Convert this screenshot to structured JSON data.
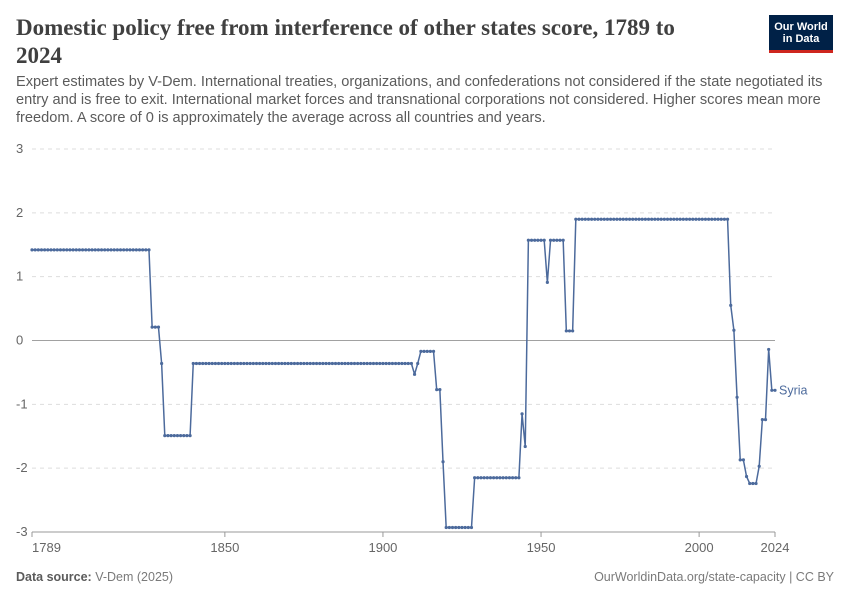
{
  "header": {
    "title": "Domestic policy free from interference of other states score, 1789 to 2024",
    "subtitle": "Expert estimates by V-Dem. International treaties, organizations, and confederations not considered if the state negotiated its entry and is free to exit. International market forces and transnational corporations not considered. Higher scores mean more freedom. A score of 0 is approximately the average across all countries and years.",
    "logo_line1": "Our World",
    "logo_line2": "in Data"
  },
  "footer": {
    "source_label": "Data source:",
    "source_value": "V-Dem (2025)",
    "link": "OurWorldinData.org/state-capacity",
    "license": "| CC BY"
  },
  "colors": {
    "series": "#4c6a9c",
    "grid": "#dddddd",
    "zero_line": "#a1a1a1",
    "text": "#5b5b5b"
  },
  "chart_data": {
    "type": "line",
    "title": "Domestic policy free from interference of other states score, 1789 to 2024",
    "xlabel": "",
    "ylabel": "",
    "xlim": [
      1789,
      2024
    ],
    "ylim": [
      -3,
      3
    ],
    "x_ticks": [
      "1789",
      "1850",
      "1900",
      "1950",
      "2000",
      "2024"
    ],
    "y_ticks": [
      "3",
      "2",
      "1",
      "0",
      "-1",
      "-2",
      "-3"
    ],
    "grid": true,
    "legend": "end-of-line label",
    "series": [
      {
        "name": "Syria",
        "segments": [
          {
            "from": 1789,
            "to": 1826,
            "value": 1.42
          },
          {
            "from": 1827,
            "to": 1829,
            "value": 0.21
          },
          {
            "from": 1830,
            "to": 1830,
            "value": -0.36
          },
          {
            "from": 1831,
            "to": 1839,
            "value": -1.49
          },
          {
            "from": 1840,
            "to": 1909,
            "value": -0.36
          },
          {
            "from": 1910,
            "to": 1910,
            "value": -0.53
          },
          {
            "from": 1911,
            "to": 1911,
            "value": -0.36
          },
          {
            "from": 1912,
            "to": 1916,
            "value": -0.17
          },
          {
            "from": 1917,
            "to": 1918,
            "value": -0.77
          },
          {
            "from": 1919,
            "to": 1919,
            "value": -1.9
          },
          {
            "from": 1920,
            "to": 1928,
            "value": -2.93
          },
          {
            "from": 1929,
            "to": 1943,
            "value": -2.15
          },
          {
            "from": 1944,
            "to": 1944,
            "value": -1.15
          },
          {
            "from": 1945,
            "to": 1945,
            "value": -1.66
          },
          {
            "from": 1946,
            "to": 1951,
            "value": 1.57
          },
          {
            "from": 1952,
            "to": 1952,
            "value": 0.91
          },
          {
            "from": 1953,
            "to": 1957,
            "value": 1.57
          },
          {
            "from": 1958,
            "to": 1960,
            "value": 0.15
          },
          {
            "from": 1961,
            "to": 2009,
            "value": 1.9
          },
          {
            "from": 2010,
            "to": 2010,
            "value": 0.55
          },
          {
            "from": 2011,
            "to": 2011,
            "value": 0.16
          },
          {
            "from": 2012,
            "to": 2012,
            "value": -0.89
          },
          {
            "from": 2013,
            "to": 2014,
            "value": -1.87
          },
          {
            "from": 2015,
            "to": 2015,
            "value": -2.13
          },
          {
            "from": 2016,
            "to": 2018,
            "value": -2.24
          },
          {
            "from": 2019,
            "to": 2019,
            "value": -1.97
          },
          {
            "from": 2020,
            "to": 2021,
            "value": -1.24
          },
          {
            "from": 2022,
            "to": 2022,
            "value": -0.14
          },
          {
            "from": 2023,
            "to": 2024,
            "value": -0.78
          }
        ]
      }
    ]
  }
}
